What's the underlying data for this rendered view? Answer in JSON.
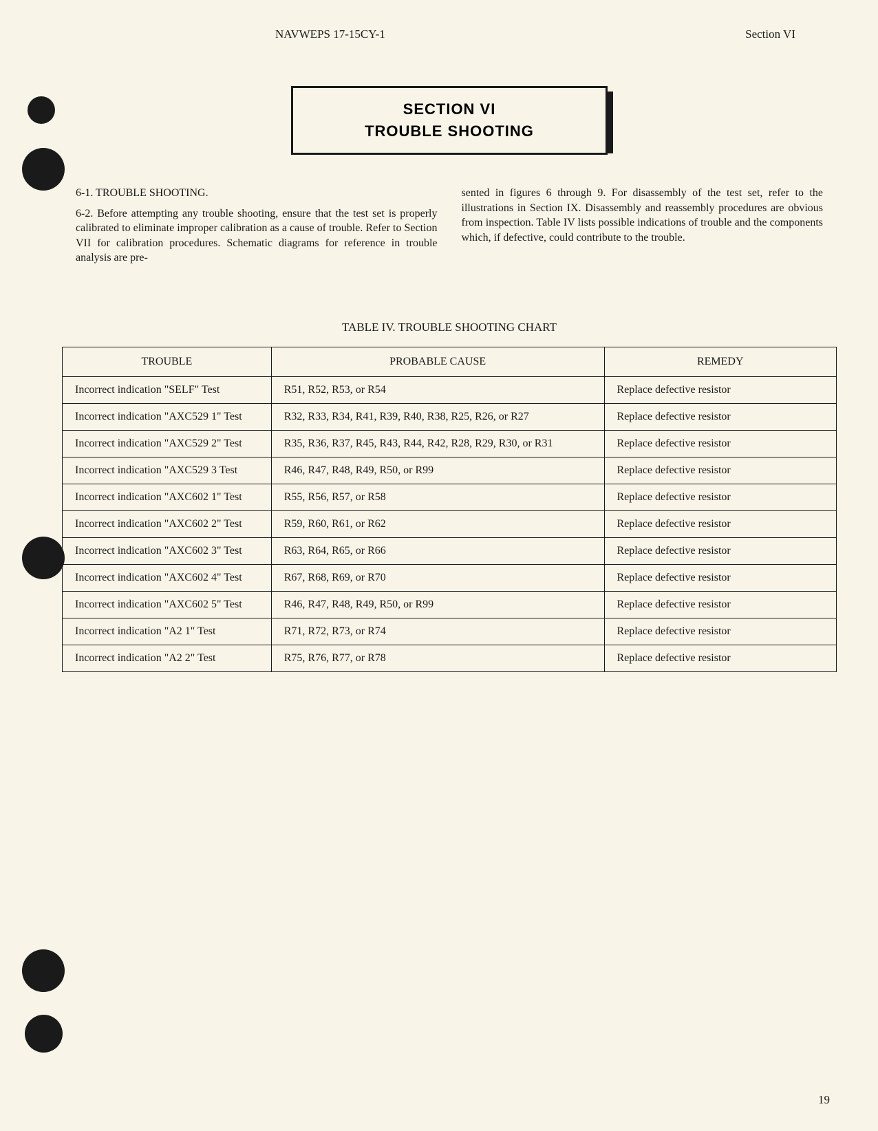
{
  "header": {
    "document_id": "NAVWEPS 17-15CY-1",
    "section_label": "Section VI"
  },
  "section_title": {
    "line1": "SECTION VI",
    "line2": "TROUBLE SHOOTING"
  },
  "paragraphs": {
    "heading_6_1": "6-1.  TROUBLE SHOOTING.",
    "body_6_2_col1": "6-2.  Before attempting any trouble shooting, ensure that the test set is properly calibrated to eliminate improper calibration as a cause of trouble.  Refer to Section VII for calibration procedures.  Schematic diagrams for reference in trouble analysis are pre-",
    "body_6_2_col2": "sented in figures 6 through 9.  For disassembly of the test set, refer to the illustrations in Section IX.  Disassembly and reassembly procedures are obvious from inspection.   Table IV lists possible  indications of trouble and the components which, if defective, could contribute to the trouble."
  },
  "table": {
    "caption": "TABLE IV.  TROUBLE SHOOTING CHART",
    "columns": [
      "TROUBLE",
      "PROBABLE CAUSE",
      "REMEDY"
    ],
    "rows": [
      {
        "trouble": "Incorrect indication \"SELF\" Test",
        "cause": "R51, R52, R53, or R54",
        "remedy": "Replace defective resistor"
      },
      {
        "trouble": "Incorrect indication \"AXC529 1\" Test",
        "cause": "R32, R33, R34, R41, R39, R40, R38, R25, R26, or R27",
        "remedy": "Replace defective resistor"
      },
      {
        "trouble": "Incorrect indication \"AXC529 2\" Test",
        "cause": "R35, R36, R37, R45, R43, R44, R42, R28, R29, R30, or R31",
        "remedy": "Replace defective resistor"
      },
      {
        "trouble": "Incorrect indication \"AXC529 3 Test",
        "cause": "R46, R47, R48, R49, R50, or R99",
        "remedy": "Replace defective resistor"
      },
      {
        "trouble": "Incorrect indication \"AXC602 1\" Test",
        "cause": "R55, R56, R57, or R58",
        "remedy": "Replace defective resistor"
      },
      {
        "trouble": "Incorrect indication \"AXC602 2\" Test",
        "cause": "R59, R60, R61, or R62",
        "remedy": "Replace defective resistor"
      },
      {
        "trouble": "Incorrect indication \"AXC602 3\" Test",
        "cause": "R63, R64, R65, or R66",
        "remedy": "Replace defective resistor"
      },
      {
        "trouble": "Incorrect indication \"AXC602 4\" Test",
        "cause": "R67, R68, R69, or R70",
        "remedy": "Replace defective resistor"
      },
      {
        "trouble": "Incorrect indication \"AXC602 5\" Test",
        "cause": "R46, R47, R48, R49, R50, or R99",
        "remedy": "Replace defective resistor"
      },
      {
        "trouble": "Incorrect indication \"A2 1\" Test",
        "cause": "R71, R72, R73, or R74",
        "remedy": "Replace defective resistor"
      },
      {
        "trouble": "Incorrect indication \"A2 2\" Test",
        "cause": "R75, R76, R77, or R78",
        "remedy": "Replace defective resistor"
      }
    ]
  },
  "page_number": "19",
  "styling": {
    "background_color": "#f9f4e8",
    "text_color": "#1a1a1a",
    "border_color": "#1a1a1a",
    "body_font_size": 16,
    "header_font_size": 17,
    "title_font_size": 22
  }
}
